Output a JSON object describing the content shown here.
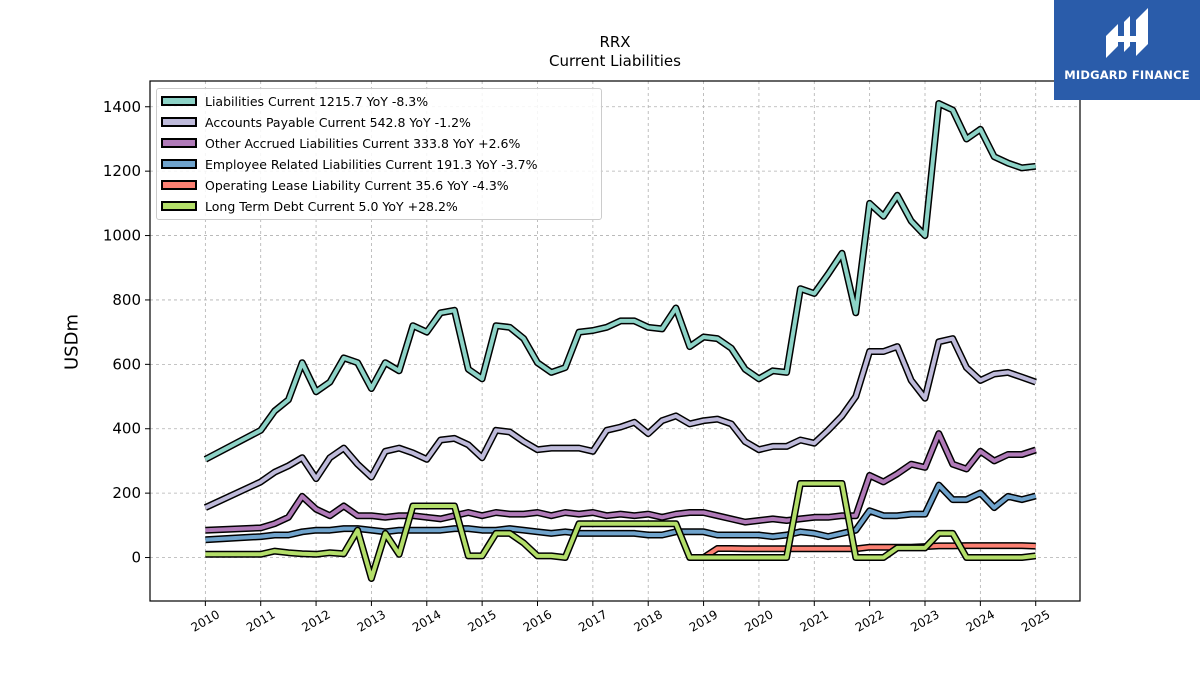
{
  "chart_data": {
    "type": "line",
    "title": "RRX",
    "subtitle": "Current  Liabilities",
    "xlabel": "",
    "ylabel": "USDm",
    "xlim": [
      2009.0,
      2025.8
    ],
    "ylim": [
      -135,
      1480
    ],
    "x_ticks": [
      "2010",
      "2011",
      "2012",
      "2013",
      "2014",
      "2015",
      "2016",
      "2017",
      "2018",
      "2019",
      "2020",
      "2021",
      "2022",
      "2023",
      "2024",
      "2025"
    ],
    "y_ticks": [
      0,
      200,
      400,
      600,
      800,
      1000,
      1200,
      1400
    ],
    "grid": true,
    "legend_position": "top-left",
    "series": [
      {
        "name": "Liabilities Current  1215.7 YoY -8.3%",
        "color": "#8dd3c7",
        "x": [
          2010.0,
          2011.0,
          2011.25,
          2011.5,
          2011.75,
          2012.0,
          2012.25,
          2012.5,
          2012.75,
          2013.0,
          2013.25,
          2013.5,
          2013.75,
          2014.0,
          2014.25,
          2014.5,
          2014.75,
          2015.0,
          2015.25,
          2015.5,
          2015.75,
          2016.0,
          2016.25,
          2016.5,
          2016.75,
          2017.0,
          2017.25,
          2017.5,
          2017.75,
          2018.0,
          2018.25,
          2018.5,
          2018.75,
          2019.0,
          2019.25,
          2019.5,
          2019.75,
          2020.0,
          2020.25,
          2020.5,
          2020.75,
          2021.0,
          2021.25,
          2021.5,
          2021.75,
          2022.0,
          2022.25,
          2022.5,
          2022.75,
          2023.0,
          2023.25,
          2023.5,
          2023.75,
          2024.0,
          2024.25,
          2024.5,
          2024.75,
          2025.0
        ],
        "y": [
          305,
          395,
          455,
          490,
          605,
          515,
          545,
          620,
          605,
          525,
          605,
          580,
          720,
          700,
          760,
          768,
          585,
          555,
          720,
          715,
          680,
          605,
          575,
          590,
          700,
          705,
          715,
          735,
          735,
          715,
          710,
          775,
          655,
          685,
          680,
          650,
          585,
          555,
          580,
          575,
          835,
          820,
          880,
          945,
          760,
          1100,
          1060,
          1125,
          1045,
          1000,
          1410,
          1390,
          1300,
          1330,
          1245,
          1225,
          1210,
          1215
        ]
      },
      {
        "name": "Accounts Payable Current  542.8 YoY -1.2%",
        "color": "#bebada",
        "x": [
          2010.0,
          2011.0,
          2011.25,
          2011.5,
          2011.75,
          2012.0,
          2012.25,
          2012.5,
          2012.75,
          2013.0,
          2013.25,
          2013.5,
          2013.75,
          2014.0,
          2014.25,
          2014.5,
          2014.75,
          2015.0,
          2015.25,
          2015.5,
          2015.75,
          2016.0,
          2016.25,
          2016.5,
          2016.75,
          2017.0,
          2017.25,
          2017.5,
          2017.75,
          2018.0,
          2018.25,
          2018.5,
          2018.75,
          2019.0,
          2019.25,
          2019.5,
          2019.75,
          2020.0,
          2020.25,
          2020.5,
          2020.75,
          2021.0,
          2021.25,
          2021.5,
          2021.75,
          2022.0,
          2022.25,
          2022.5,
          2022.75,
          2023.0,
          2023.25,
          2023.5,
          2023.75,
          2024.0,
          2024.25,
          2024.5,
          2024.75,
          2025.0
        ],
        "y": [
          155,
          235,
          265,
          285,
          310,
          245,
          310,
          340,
          290,
          250,
          330,
          340,
          325,
          305,
          365,
          370,
          350,
          310,
          395,
          390,
          360,
          335,
          340,
          340,
          340,
          330,
          395,
          405,
          420,
          385,
          425,
          440,
          415,
          425,
          430,
          415,
          360,
          335,
          345,
          345,
          365,
          355,
          395,
          440,
          500,
          640,
          640,
          655,
          550,
          495,
          670,
          680,
          590,
          550,
          570,
          575,
          560,
          545
        ]
      },
      {
        "name": "Other Accrued Liabilities Current  333.8 YoY +2.6%",
        "color": "#b07ab8",
        "x": [
          2010.0,
          2011.0,
          2011.25,
          2011.5,
          2011.75,
          2012.0,
          2012.25,
          2012.5,
          2012.75,
          2013.0,
          2013.25,
          2013.5,
          2013.75,
          2014.0,
          2014.25,
          2014.5,
          2014.75,
          2015.0,
          2015.25,
          2015.5,
          2015.75,
          2016.0,
          2016.25,
          2016.5,
          2016.75,
          2017.0,
          2017.25,
          2017.5,
          2017.75,
          2018.0,
          2018.25,
          2018.5,
          2018.75,
          2019.0,
          2019.25,
          2019.5,
          2019.75,
          2020.0,
          2020.25,
          2020.5,
          2020.75,
          2021.0,
          2021.25,
          2021.5,
          2021.75,
          2022.0,
          2022.25,
          2022.5,
          2022.75,
          2023.0,
          2023.25,
          2023.5,
          2023.75,
          2024.0,
          2024.25,
          2024.5,
          2024.75,
          2025.0
        ],
        "y": [
          85,
          92,
          105,
          125,
          190,
          150,
          130,
          160,
          130,
          130,
          125,
          130,
          130,
          125,
          120,
          130,
          140,
          130,
          140,
          135,
          135,
          140,
          130,
          140,
          135,
          140,
          130,
          135,
          130,
          135,
          125,
          135,
          140,
          140,
          130,
          120,
          110,
          115,
          120,
          115,
          120,
          125,
          125,
          130,
          130,
          255,
          235,
          260,
          290,
          280,
          385,
          290,
          275,
          330,
          300,
          320,
          320,
          334
        ]
      },
      {
        "name": "Employee Related Liabilities Current  191.3 YoY -3.7%",
        "color": "#6fa3cc",
        "x": [
          2010.0,
          2011.0,
          2011.25,
          2011.5,
          2011.75,
          2012.0,
          2012.25,
          2012.5,
          2012.75,
          2013.0,
          2013.25,
          2013.5,
          2013.75,
          2014.0,
          2014.25,
          2014.5,
          2014.75,
          2015.0,
          2015.25,
          2015.5,
          2015.75,
          2016.0,
          2016.25,
          2016.5,
          2016.75,
          2017.0,
          2017.25,
          2017.5,
          2017.75,
          2018.0,
          2018.25,
          2018.5,
          2018.75,
          2019.0,
          2019.25,
          2019.5,
          2019.75,
          2020.0,
          2020.25,
          2020.5,
          2020.75,
          2021.0,
          2021.25,
          2021.5,
          2021.75,
          2022.0,
          2022.25,
          2022.5,
          2022.75,
          2023.0,
          2023.25,
          2023.5,
          2023.75,
          2024.0,
          2024.25,
          2024.5,
          2024.75,
          2025.0
        ],
        "y": [
          55,
          65,
          70,
          70,
          80,
          85,
          85,
          90,
          90,
          85,
          80,
          85,
          85,
          85,
          85,
          90,
          90,
          85,
          85,
          90,
          85,
          80,
          75,
          80,
          75,
          75,
          75,
          75,
          75,
          70,
          70,
          80,
          80,
          80,
          70,
          70,
          70,
          70,
          65,
          70,
          80,
          75,
          65,
          75,
          85,
          145,
          130,
          130,
          135,
          135,
          225,
          180,
          180,
          200,
          155,
          190,
          180,
          191
        ]
      },
      {
        "name": "Operating Lease Liability Current  35.6 YoY -4.3%",
        "color": "#fb8072",
        "x": [
          2019.0,
          2019.25,
          2019.5,
          2019.75,
          2020.0,
          2020.25,
          2020.5,
          2020.75,
          2021.0,
          2021.25,
          2021.5,
          2021.75,
          2022.0,
          2022.25,
          2022.5,
          2022.75,
          2023.0,
          2023.25,
          2023.5,
          2023.75,
          2024.0,
          2024.25,
          2024.5,
          2024.75,
          2025.0
        ],
        "y": [
          0,
          28,
          28,
          27,
          27,
          27,
          27,
          27,
          27,
          27,
          27,
          27,
          32,
          32,
          32,
          32,
          34,
          36,
          36,
          37,
          37,
          37,
          37,
          37,
          35.6
        ]
      },
      {
        "name": "Long Term Debt Current  5.0 YoY +28.2%",
        "color": "#b3de69",
        "x": [
          2010.0,
          2011.0,
          2011.25,
          2011.5,
          2011.75,
          2012.0,
          2012.25,
          2012.5,
          2012.75,
          2013.0,
          2013.25,
          2013.5,
          2013.75,
          2014.0,
          2014.25,
          2014.5,
          2014.75,
          2015.0,
          2015.25,
          2015.5,
          2015.75,
          2016.0,
          2016.25,
          2016.5,
          2016.75,
          2017.0,
          2017.25,
          2017.5,
          2017.75,
          2018.0,
          2018.25,
          2018.5,
          2018.75,
          2019.0,
          2019.25,
          2019.5,
          2019.75,
          2020.0,
          2020.25,
          2020.5,
          2020.75,
          2021.0,
          2021.25,
          2021.5,
          2021.75,
          2022.0,
          2022.25,
          2022.5,
          2022.75,
          2023.0,
          2023.25,
          2023.5,
          2023.75,
          2024.0,
          2024.25,
          2024.5,
          2024.75,
          2025.0
        ],
        "y": [
          10,
          10,
          20,
          15,
          12,
          10,
          15,
          12,
          85,
          -65,
          75,
          10,
          160,
          160,
          160,
          160,
          5,
          5,
          75,
          75,
          45,
          5,
          5,
          0,
          105,
          105,
          105,
          105,
          105,
          105,
          105,
          105,
          0,
          0,
          0,
          0,
          0,
          0,
          0,
          0,
          230,
          230,
          230,
          230,
          0,
          0,
          0,
          30,
          30,
          30,
          75,
          75,
          0,
          0,
          0,
          0,
          0,
          5
        ]
      }
    ]
  },
  "logo": {
    "text": "MIDGARD FINANCE"
  }
}
